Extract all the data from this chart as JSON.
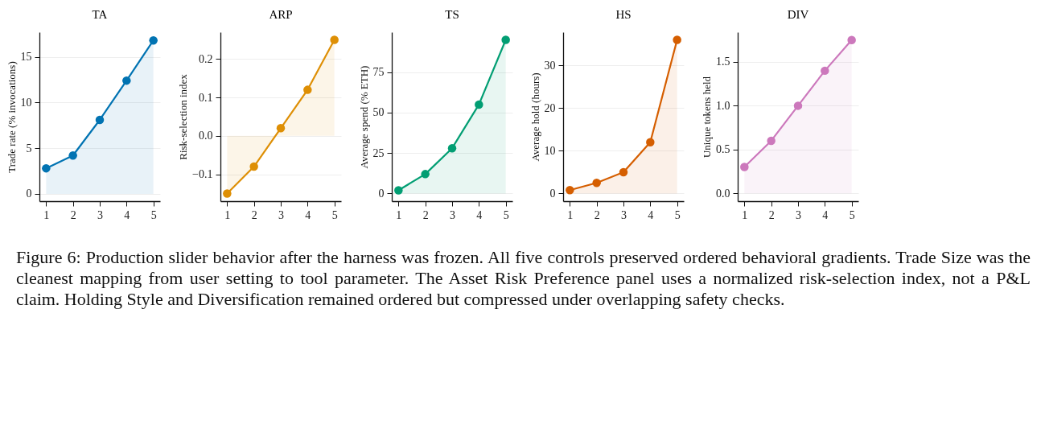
{
  "chart_data": [
    {
      "type": "area",
      "title": "TA",
      "ylabel": "Trade rate (% invocations)",
      "x": [
        1,
        2,
        3,
        4,
        5
      ],
      "values": [
        2.8,
        4.2,
        8.1,
        12.4,
        16.8
      ],
      "color": "#0173b2",
      "xlim": [
        0.75,
        5.25
      ],
      "xticks": [
        1,
        2,
        3,
        4,
        5
      ],
      "ylim": [
        -0.8,
        17.7
      ],
      "yticks": [
        0,
        5,
        10,
        15
      ],
      "grid": "y",
      "marker": "circle",
      "annotations": [
        "Figure 6: Production slider behavior after the harness was frozen. All five controls preserved ordered behavioral gradients. Trade Size was the cleanest mapping from user setting to tool parameter. The Asset Risk Preference panel uses a normalized risk-selection index, not a P&L claim. Holding Style and Diversification remained ordered but compressed under overlapping safety checks."
      ]
    },
    {
      "type": "area",
      "title": "ARP",
      "ylabel": "Risk-selection index",
      "x": [
        1,
        2,
        3,
        4,
        5
      ],
      "values": [
        -0.15,
        -0.08,
        0.02,
        0.12,
        0.25
      ],
      "color": "#de8f05",
      "xlim": [
        0.75,
        5.25
      ],
      "xticks": [
        1,
        2,
        3,
        4,
        5
      ],
      "ylim": [
        -0.17,
        0.27
      ],
      "yticks": [
        {
          "value": -0.1,
          "label": "−0.1"
        },
        {
          "value": 0,
          "label": "0.0"
        },
        0.1,
        0.2
      ],
      "grid": "y",
      "marker": "circle"
    },
    {
      "type": "area",
      "title": "TS",
      "ylabel": "Average spend (% ETH)",
      "x": [
        1,
        2,
        3,
        4,
        5
      ],
      "values": [
        2,
        12,
        28,
        55,
        95
      ],
      "color": "#029e73",
      "xlim": [
        0.75,
        5.25
      ],
      "xticks": [
        1,
        2,
        3,
        4,
        5
      ],
      "ylim": [
        -4.75,
        99.75
      ],
      "yticks": [
        0,
        25,
        50,
        75
      ],
      "grid": "y",
      "marker": "circle"
    },
    {
      "type": "area",
      "title": "HS",
      "ylabel": "Average hold (hours)",
      "x": [
        1,
        2,
        3,
        4,
        5
      ],
      "values": [
        0.8,
        2.5,
        5,
        12,
        36
      ],
      "color": "#d55e00",
      "xlim": [
        0.75,
        5.25
      ],
      "xticks": [
        1,
        2,
        3,
        4,
        5
      ],
      "ylim": [
        -1.8,
        37.8
      ],
      "yticks": [
        0,
        10,
        20,
        30
      ],
      "grid": "y",
      "marker": "circle"
    },
    {
      "type": "area",
      "title": "DIV",
      "ylabel": "Unique tokens held",
      "x": [
        1,
        2,
        3,
        4,
        5
      ],
      "values": [
        0.3,
        0.6,
        1.0,
        1.4,
        1.75
      ],
      "color": "#cc78bc",
      "xlim": [
        0.75,
        5.25
      ],
      "xticks": [
        1,
        2,
        3,
        4,
        5
      ],
      "ylim": [
        -0.09,
        1.84
      ],
      "yticks": [
        {
          "value": 0,
          "label": "0.0"
        },
        0.5,
        {
          "value": 1,
          "label": "1.0"
        },
        1.5
      ],
      "grid": "y",
      "marker": "circle"
    }
  ]
}
